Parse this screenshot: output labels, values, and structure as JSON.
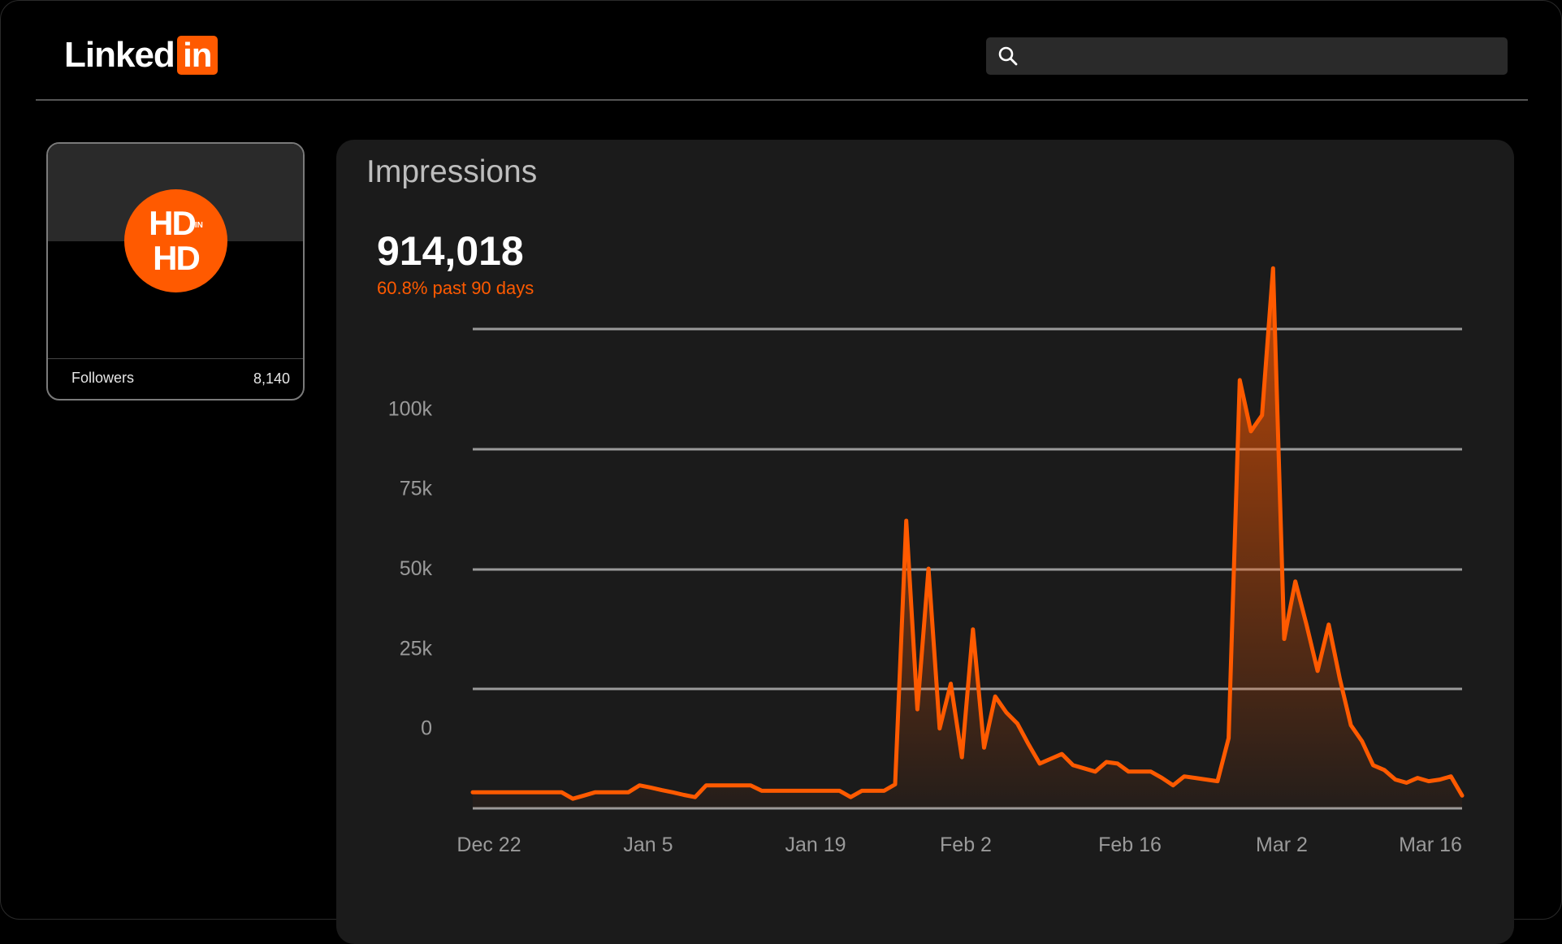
{
  "header": {
    "logo_word": "Linked",
    "logo_box": "in",
    "search": {
      "placeholder": "",
      "value": "",
      "icon": "search-icon"
    }
  },
  "profile": {
    "avatar_line1": "HD",
    "avatar_small": "IN",
    "avatar_line2": "HD",
    "followers_label": "Followers",
    "followers_value": "8,140"
  },
  "impressions": {
    "title": "Impressions",
    "total": "914,018",
    "change": "60.8% past 90 days"
  },
  "colors": {
    "accent": "#ff5a00",
    "background": "#000000",
    "panel": "#1b1b1b",
    "gridline": "#9a9a9a"
  },
  "chart_data": {
    "type": "area",
    "title": "Impressions",
    "xlabel": "",
    "ylabel": "",
    "x_ticks": [
      "Dec 22",
      "Jan 5",
      "Jan 19",
      "Feb 2",
      "Feb 16",
      "Mar 2",
      "Mar 16"
    ],
    "y_ticks": [
      {
        "label": "0",
        "value": 0
      },
      {
        "label": "25k",
        "value": 25000
      },
      {
        "label": "50k",
        "value": 50000
      },
      {
        "label": "75k",
        "value": 75000
      },
      {
        "label": "100k",
        "value": 100000
      }
    ],
    "grid": true,
    "ylim": [
      -25000,
      125000
    ],
    "x_start": "Dec 22",
    "series": [
      {
        "values": [
          -20000,
          -20000,
          -20000,
          -20000,
          -20000,
          -20000,
          -20000,
          -20000,
          -20000,
          -22000,
          -21000,
          -20000,
          -20000,
          -20000,
          -20000,
          -17800,
          -18500,
          -19300,
          -20000,
          -20800,
          -21500,
          -17800,
          -17800,
          -17800,
          -17800,
          -17800,
          -19500,
          -19500,
          -19500,
          -19500,
          -19500,
          -19500,
          -19500,
          -19500,
          -21500,
          -19500,
          -19500,
          -19500,
          -17500,
          65000,
          6000,
          50000,
          0,
          14000,
          -9000,
          31000,
          -6000,
          10000,
          5000,
          1500,
          -5000,
          -11000,
          -9500,
          -8000,
          -11500,
          -12500,
          -13500,
          -10500,
          -11000,
          -13500,
          -13500,
          -13500,
          -15500,
          -17800,
          -15000,
          -15500,
          -16000,
          -16500,
          -3000,
          109000,
          93000,
          98000,
          144000,
          28000,
          46000,
          32500,
          18000,
          32500,
          15500,
          1000,
          -4000,
          -11500,
          -13000,
          -16000,
          -17000,
          -15500,
          -16500,
          -16000,
          -15000,
          -21000
        ]
      }
    ]
  }
}
